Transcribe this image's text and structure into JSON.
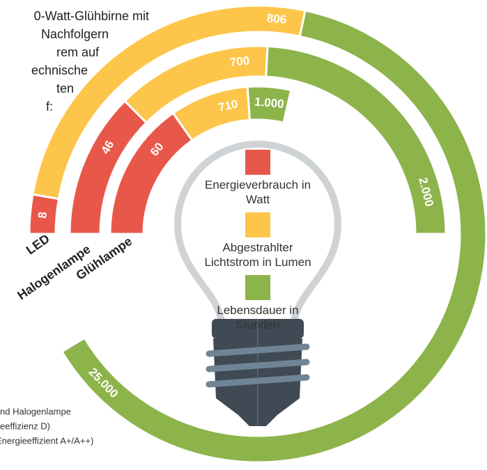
{
  "intro_lines": [
    "0-Watt-Glühbirne mit",
    "Nachfolgern",
    "rem auf",
    "echnische",
    "ten",
    "f:"
  ],
  "footnote_lines": [
    "nd Halogenlampe",
    "eeffizienz D)",
    "Energieeffizient A+/A++)"
  ],
  "chart_data": {
    "type": "radial_bar",
    "categories": [
      "LED",
      "Halogenlampe",
      "Glühlampe"
    ],
    "series": [
      {
        "name": "Energieverbrauch in Watt",
        "color": "#e8584a",
        "values": [
          8,
          46,
          60
        ]
      },
      {
        "name": "Abgestrahlter Lichtstrom in Lumen",
        "color": "#fdc54a",
        "values": [
          806,
          700,
          710
        ]
      },
      {
        "name": "Lebensdauer in Stunden",
        "color": "#8db34b",
        "values": [
          25000,
          2000,
          1000
        ],
        "value_labels": [
          "25.000",
          "2.000",
          "1.000"
        ]
      }
    ]
  }
}
